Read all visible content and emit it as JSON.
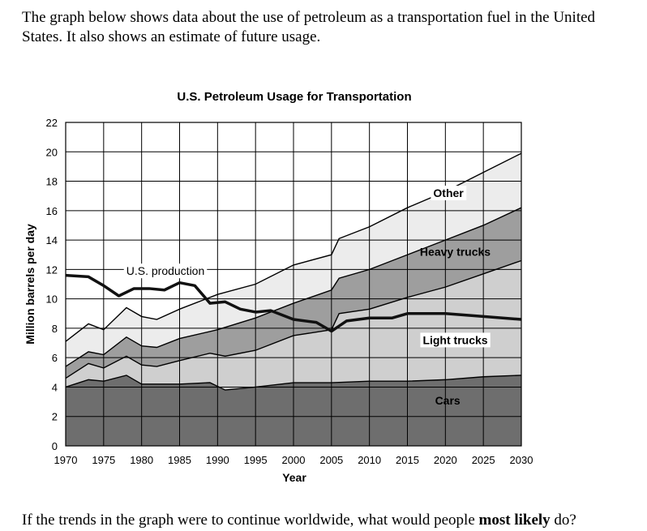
{
  "intro_text": "The graph below shows data about the use of petroleum as a transportation fuel in the United States. It also shows an estimate of future usage.",
  "question": {
    "prefix": "If the trends in the graph were to continue worldwide, what would people ",
    "emphasis": "most likely",
    "suffix": " do?"
  },
  "chart_data": {
    "type": "area",
    "title": "U.S. Petroleum Usage for Transportation",
    "xlabel": "Year",
    "ylabel": "Million barrels per day",
    "xlim": [
      1970,
      2030
    ],
    "ylim": [
      0,
      22
    ],
    "xticks": [
      1970,
      1975,
      1980,
      1985,
      1990,
      1995,
      2000,
      2005,
      2010,
      2015,
      2020,
      2025,
      2030
    ],
    "yticks": [
      0,
      2,
      4,
      6,
      8,
      10,
      12,
      14,
      16,
      18,
      20,
      22
    ],
    "grid": true,
    "stacked": true,
    "colors": {
      "Cars": "#6e6e6e",
      "Light trucks": "#cfcfcf",
      "Heavy trucks": "#9e9e9e",
      "Other": "#ececec",
      "U.S. production": "#111111"
    },
    "series_cumulative": [
      {
        "name": "Cars",
        "x": [
          1970,
          1973,
          1975,
          1978,
          1980,
          1985,
          1989,
          1991,
          1995,
          2000,
          2005,
          2010,
          2015,
          2020,
          2025,
          2030
        ],
        "values": [
          4.0,
          4.5,
          4.4,
          4.8,
          4.2,
          4.2,
          4.3,
          3.8,
          4.0,
          4.3,
          4.3,
          4.4,
          4.4,
          4.5,
          4.7,
          4.8
        ]
      },
      {
        "name": "Light trucks",
        "x": [
          1970,
          1973,
          1975,
          1978,
          1980,
          1982,
          1985,
          1989,
          1991,
          1995,
          2000,
          2005,
          2006,
          2010,
          2015,
          2020,
          2025,
          2030
        ],
        "values": [
          4.6,
          5.6,
          5.3,
          6.1,
          5.5,
          5.4,
          5.8,
          6.3,
          6.1,
          6.5,
          7.5,
          7.9,
          9.0,
          9.3,
          10.1,
          10.8,
          11.7,
          12.6
        ]
      },
      {
        "name": "Heavy trucks",
        "x": [
          1970,
          1973,
          1975,
          1978,
          1980,
          1982,
          1985,
          1990,
          1995,
          2000,
          2005,
          2006,
          2010,
          2015,
          2020,
          2025,
          2030
        ],
        "values": [
          5.4,
          6.4,
          6.2,
          7.4,
          6.8,
          6.7,
          7.3,
          7.9,
          8.7,
          9.7,
          10.6,
          11.4,
          12.0,
          13.0,
          14.0,
          15.0,
          16.2
        ]
      },
      {
        "name": "Other",
        "x": [
          1970,
          1973,
          1975,
          1978,
          1980,
          1982,
          1985,
          1990,
          1995,
          2000,
          2005,
          2006,
          2010,
          2015,
          2020,
          2025,
          2030
        ],
        "values": [
          7.1,
          8.3,
          7.9,
          9.4,
          8.8,
          8.6,
          9.3,
          10.3,
          11.0,
          12.3,
          13.0,
          14.1,
          14.9,
          16.2,
          17.3,
          18.6,
          19.9
        ]
      }
    ],
    "line_series": {
      "name": "U.S. production",
      "x": [
        1970,
        1973,
        1975,
        1977,
        1979,
        1981,
        1983,
        1985,
        1987,
        1989,
        1991,
        1993,
        1995,
        1997,
        2000,
        2003,
        2005,
        2007,
        2010,
        2013,
        2015,
        2020,
        2025,
        2030
      ],
      "values": [
        11.6,
        11.5,
        10.9,
        10.2,
        10.7,
        10.7,
        10.6,
        11.1,
        10.9,
        9.7,
        9.8,
        9.3,
        9.1,
        9.2,
        8.6,
        8.4,
        7.8,
        8.5,
        8.7,
        8.7,
        9.0,
        9.0,
        8.8,
        8.6
      ]
    },
    "annotations": [
      {
        "text": "U.S. production",
        "series": "U.S. production"
      },
      {
        "text": "Other",
        "series": "Other"
      },
      {
        "text": "Heavy trucks",
        "series": "Heavy trucks"
      },
      {
        "text": "Light trucks",
        "series": "Light trucks"
      },
      {
        "text": "Cars",
        "series": "Cars"
      }
    ]
  }
}
